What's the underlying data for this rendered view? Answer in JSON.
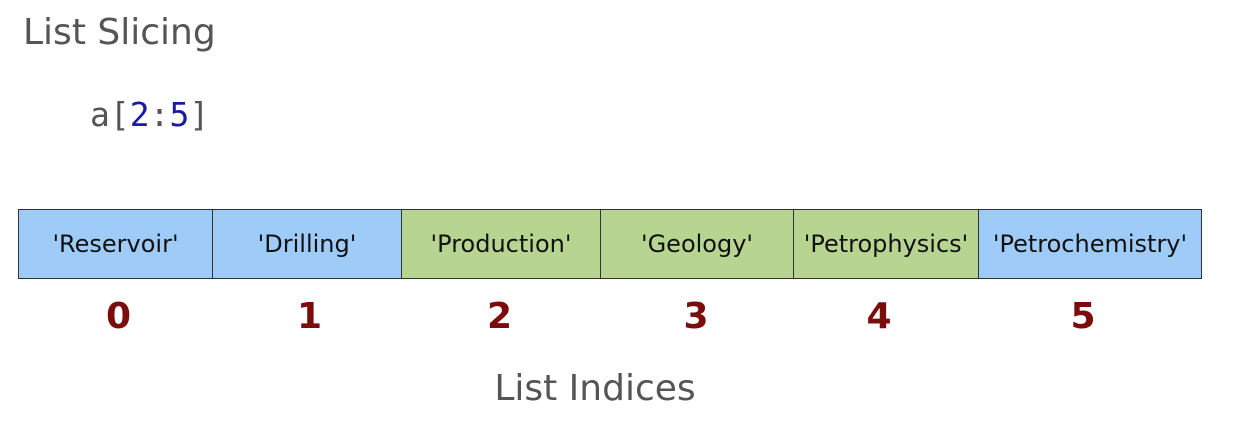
{
  "title": "List Slicing",
  "code": {
    "var": "a",
    "open": "[",
    "start": "2",
    "colon": ":",
    "stop": "5",
    "close": "]"
  },
  "list": {
    "items": [
      {
        "label": "'Reservoir'",
        "highlight": false
      },
      {
        "label": "'Drilling'",
        "highlight": false
      },
      {
        "label": "'Production'",
        "highlight": true
      },
      {
        "label": "'Geology'",
        "highlight": true
      },
      {
        "label": "'Petrophysics'",
        "highlight": true
      },
      {
        "label": "'Petrochemistry'",
        "highlight": false
      }
    ],
    "indices": [
      "0",
      "1",
      "2",
      "3",
      "4",
      "5"
    ]
  },
  "caption": "List Indices",
  "colors": {
    "default_cell": "#9ecbf7",
    "sliced_cell": "#b7d590",
    "index_text": "#7b0c0c",
    "code_number": "#1a1a9c"
  }
}
